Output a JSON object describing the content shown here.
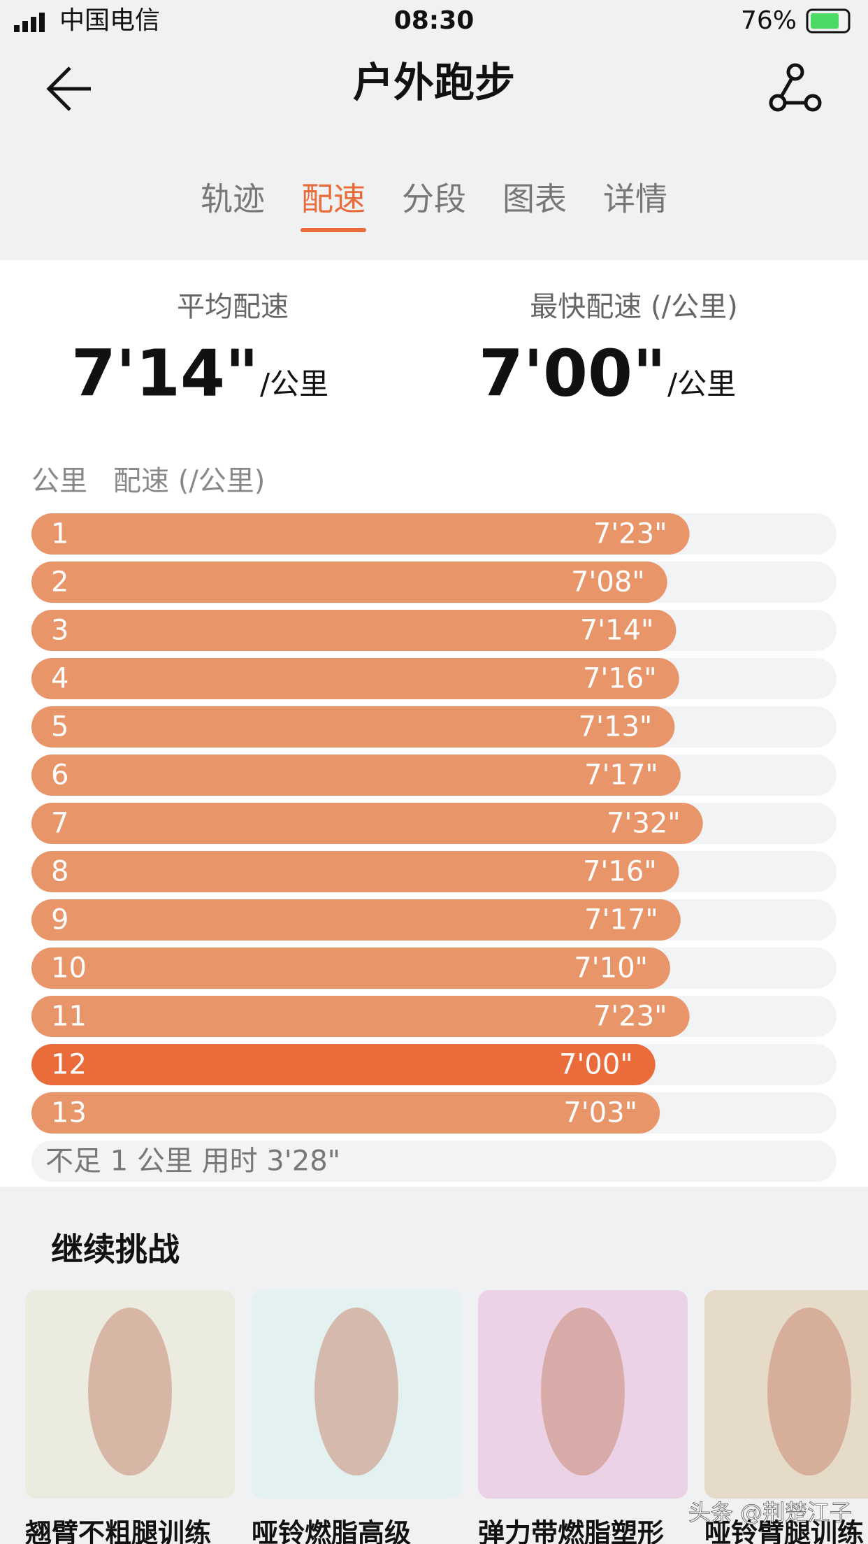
{
  "status_bar": {
    "carrier": "中国电信",
    "time": "08:30",
    "battery": "76%"
  },
  "nav": {
    "title": "户外跑步"
  },
  "tabs": {
    "items": [
      "轨迹",
      "配速",
      "分段",
      "图表",
      "详情"
    ],
    "active": 1
  },
  "summary": {
    "avg": {
      "label": "平均配速",
      "value": "7'14\"",
      "unit": "/公里"
    },
    "fastest": {
      "label": "最快配速 (/公里)",
      "value": "7'00\"",
      "unit": "/公里"
    }
  },
  "chart_data": {
    "type": "bar",
    "x_label": "公里",
    "y_label": "配速 (/公里)",
    "categories": [
      "1",
      "2",
      "3",
      "4",
      "5",
      "6",
      "7",
      "8",
      "9",
      "10",
      "11",
      "12",
      "13"
    ],
    "values": [
      443,
      428,
      434,
      436,
      433,
      437,
      452,
      436,
      437,
      430,
      443,
      420,
      423
    ],
    "value_labels": [
      "7'23\"",
      "7'08\"",
      "7'14\"",
      "7'16\"",
      "7'13\"",
      "7'17\"",
      "7'32\"",
      "7'16\"",
      "7'17\"",
      "7'10\"",
      "7'23\"",
      "7'00\"",
      "7'03\""
    ],
    "colors": [
      "#e9956a",
      "#e9956a",
      "#e9956a",
      "#e9956a",
      "#e9956a",
      "#e9956a",
      "#e9956a",
      "#e9956a",
      "#e9956a",
      "#e9956a",
      "#e9956a",
      "#e96c3a",
      "#e9956a"
    ],
    "track_color": "#f2f3f5",
    "xlim": [
      0,
      542
    ]
  },
  "remainder": "不足 1 公里 用时 3'28\"",
  "challenge": {
    "title": "继续挑战",
    "cards": [
      {
        "title": "翘臂不粗腿训练",
        "color": "#ecebdf"
      },
      {
        "title": "哑铃燃脂高级",
        "color": "#e3f1f0"
      },
      {
        "title": "弹力带燃脂塑形",
        "color": "#ecd2e6"
      },
      {
        "title": "哑铃臂腿训练",
        "color": "#e6dac8"
      }
    ]
  },
  "watermark": "头条 @荆楚江子"
}
